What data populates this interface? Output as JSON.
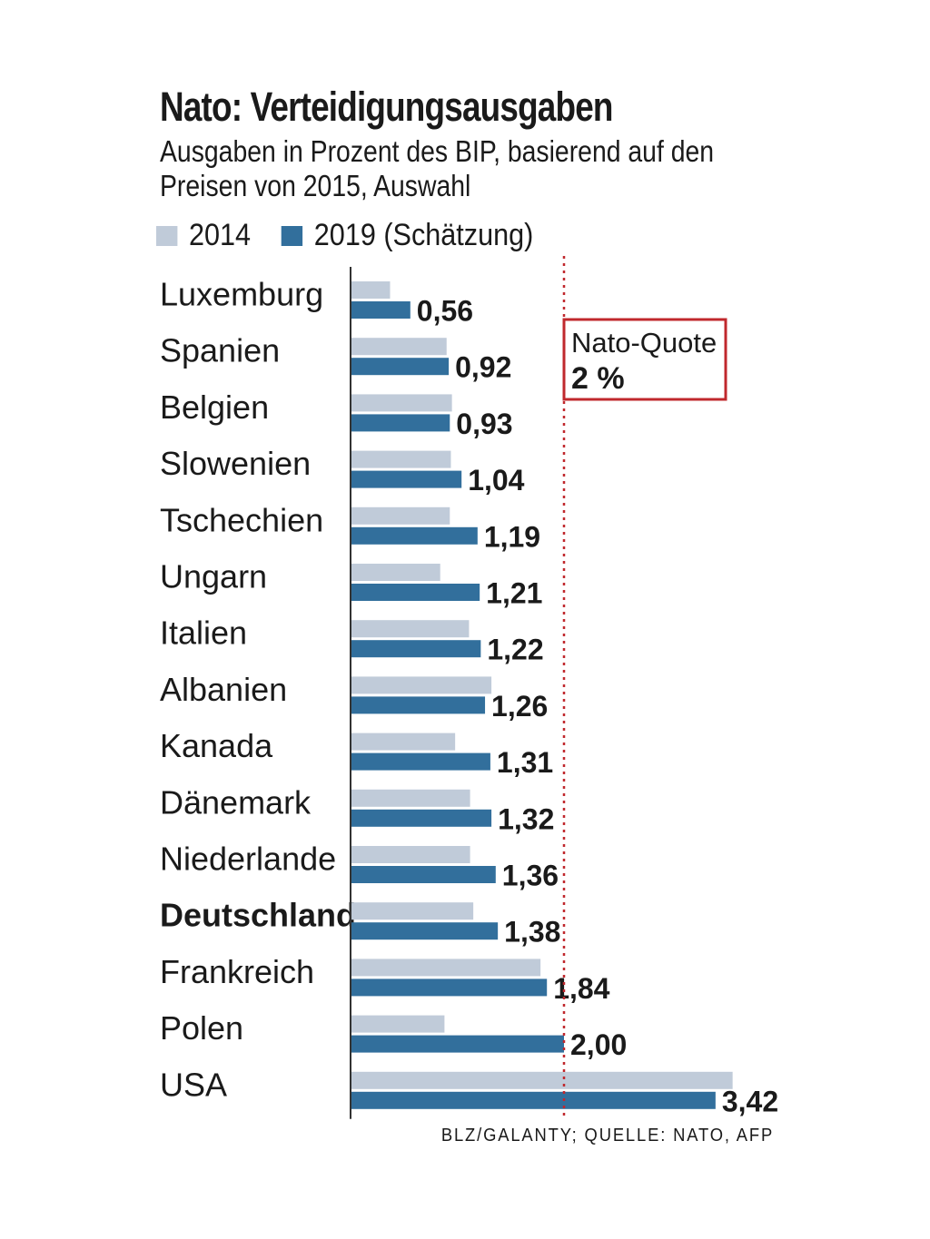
{
  "header": {
    "title": "Nato: Verteidigungsausgaben",
    "subtitle": "Ausgaben in Prozent des BIP, basierend auf den Preisen von 2015, Auswahl"
  },
  "legend": {
    "series_2014": "2014",
    "series_2019": "2019 (Schätzung)"
  },
  "annotation": {
    "label": "Nato-Quote",
    "value_text": "2 %",
    "value": 2.0
  },
  "source": "BLZ/GALANTY; QUELLE: NATO, AFP",
  "colors": {
    "series_2014": "#c0cbd9",
    "series_2019": "#326f9c",
    "reference_line": "#c0282d",
    "axis": "#333333",
    "text": "#1a1a1a"
  },
  "chart_data": {
    "type": "bar",
    "orientation": "horizontal",
    "categories": [
      "Luxemburg",
      "Spanien",
      "Belgien",
      "Slowenien",
      "Tschechien",
      "Ungarn",
      "Italien",
      "Albanien",
      "Kanada",
      "Dänemark",
      "Niederlande",
      "Deutschland",
      "Frankreich",
      "Polen",
      "USA"
    ],
    "highlighted_category": "Deutschland",
    "series": [
      {
        "name": "2014",
        "values": [
          0.37,
          0.9,
          0.95,
          0.94,
          0.93,
          0.84,
          1.11,
          1.32,
          0.98,
          1.12,
          1.12,
          1.15,
          1.78,
          0.88,
          3.58
        ]
      },
      {
        "name": "2019 (Schätzung)",
        "values": [
          0.56,
          0.92,
          0.93,
          1.04,
          1.19,
          1.21,
          1.22,
          1.26,
          1.31,
          1.32,
          1.36,
          1.38,
          1.84,
          2.0,
          3.42
        ],
        "value_labels": [
          "0,56",
          "0,92",
          "0,93",
          "1,04",
          "1,19",
          "1,21",
          "1,22",
          "1,26",
          "1,31",
          "1,32",
          "1,36",
          "1,38",
          "1,84",
          "2,00",
          "3,42"
        ]
      }
    ],
    "reference_line": {
      "value": 2.0,
      "style": "dotted"
    },
    "xlim": [
      0,
      3.6
    ],
    "grid": false,
    "legend_position": "top-left"
  }
}
